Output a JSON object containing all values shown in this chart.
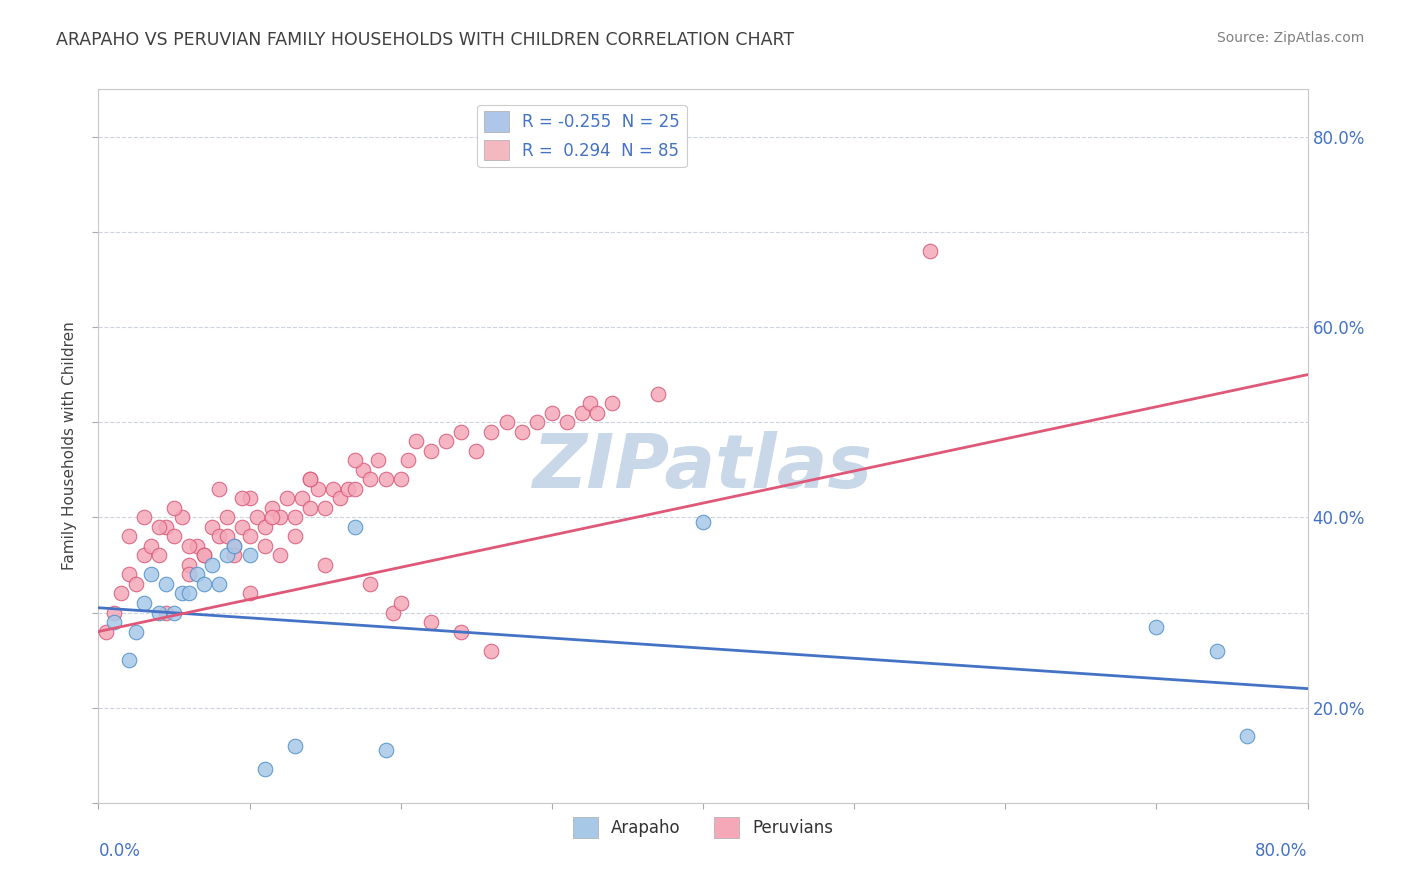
{
  "title": "ARAPAHO VS PERUVIAN FAMILY HOUSEHOLDS WITH CHILDREN CORRELATION CHART",
  "source": "Source: ZipAtlas.com",
  "ylabel": "Family Households with Children",
  "watermark": "ZIPatlas",
  "legend_entries": [
    {
      "label": "R = -0.255  N = 25",
      "color": "#aec6e8"
    },
    {
      "label": "R =  0.294  N = 85",
      "color": "#f4b8c1"
    }
  ],
  "arapaho_color": "#a8c8e8",
  "peruvian_color": "#f4a8b8",
  "arapaho_edge_color": "#5090c8",
  "peruvian_edge_color": "#d85878",
  "arapaho_line_color": "#4472c4",
  "peruvian_line_color": "#e05878",
  "title_color": "#404040",
  "source_color": "#808080",
  "axis_label_color": "#4472c4",
  "watermark_color": "#c8d8e8",
  "xmin": 0.0,
  "xmax": 80.0,
  "ymin": 10.0,
  "ymax": 85.0,
  "right_yticks": [
    20.0,
    40.0,
    60.0,
    80.0
  ],
  "arapaho_x": [
    1.0,
    2.0,
    2.5,
    3.0,
    3.5,
    4.0,
    4.5,
    5.0,
    5.5,
    6.0,
    6.5,
    7.0,
    7.5,
    8.0,
    8.5,
    9.0,
    10.0,
    11.0,
    13.0,
    17.0,
    19.0,
    40.0,
    70.0,
    74.0,
    76.0
  ],
  "arapaho_y": [
    29.0,
    25.0,
    28.0,
    31.0,
    34.0,
    30.0,
    33.0,
    30.0,
    32.0,
    32.0,
    34.0,
    33.0,
    35.0,
    33.0,
    36.0,
    37.0,
    36.0,
    13.5,
    16.0,
    39.0,
    15.5,
    39.5,
    28.5,
    26.0,
    17.0
  ],
  "peruvian_x": [
    0.5,
    1.0,
    1.5,
    2.0,
    2.5,
    3.0,
    3.5,
    4.0,
    4.5,
    5.0,
    5.5,
    6.0,
    6.5,
    7.0,
    7.5,
    8.0,
    8.5,
    9.0,
    9.5,
    10.0,
    10.5,
    11.0,
    11.5,
    12.0,
    12.5,
    13.0,
    13.5,
    14.0,
    14.5,
    15.0,
    15.5,
    16.0,
    16.5,
    17.0,
    17.5,
    18.0,
    18.5,
    19.0,
    19.5,
    20.0,
    20.5,
    21.0,
    22.0,
    23.0,
    24.0,
    25.0,
    26.0,
    27.0,
    28.0,
    29.0,
    30.0,
    31.0,
    32.0,
    32.5,
    33.0,
    34.0,
    37.0,
    14.0,
    10.0,
    8.0,
    5.0,
    3.0,
    2.0,
    4.0,
    6.0,
    7.0,
    9.0,
    11.0,
    13.0,
    15.0,
    18.0,
    20.0,
    22.0,
    24.0,
    26.0,
    55.0,
    17.0,
    14.0,
    9.5,
    11.5,
    8.5,
    12.0,
    6.0,
    10.0,
    4.5
  ],
  "peruvian_y": [
    28.0,
    30.0,
    32.0,
    34.0,
    33.0,
    36.0,
    37.0,
    36.0,
    39.0,
    38.0,
    40.0,
    35.0,
    37.0,
    36.0,
    39.0,
    38.0,
    40.0,
    37.0,
    39.0,
    38.0,
    40.0,
    39.0,
    41.0,
    40.0,
    42.0,
    40.0,
    42.0,
    41.0,
    43.0,
    41.0,
    43.0,
    42.0,
    43.0,
    43.0,
    45.0,
    44.0,
    46.0,
    44.0,
    30.0,
    44.0,
    46.0,
    48.0,
    47.0,
    48.0,
    49.0,
    47.0,
    49.0,
    50.0,
    49.0,
    50.0,
    51.0,
    50.0,
    51.0,
    52.0,
    51.0,
    52.0,
    53.0,
    44.0,
    42.0,
    43.0,
    41.0,
    40.0,
    38.0,
    39.0,
    37.0,
    36.0,
    36.0,
    37.0,
    38.0,
    35.0,
    33.0,
    31.0,
    29.0,
    28.0,
    26.0,
    68.0,
    46.0,
    44.0,
    42.0,
    40.0,
    38.0,
    36.0,
    34.0,
    32.0,
    30.0
  ],
  "blue_line_x0": 0.0,
  "blue_line_y0": 30.5,
  "blue_line_x1": 80.0,
  "blue_line_y1": 22.0,
  "pink_line_x0": 0.0,
  "pink_line_y0": 28.0,
  "pink_line_x1": 80.0,
  "pink_line_y1": 55.0
}
